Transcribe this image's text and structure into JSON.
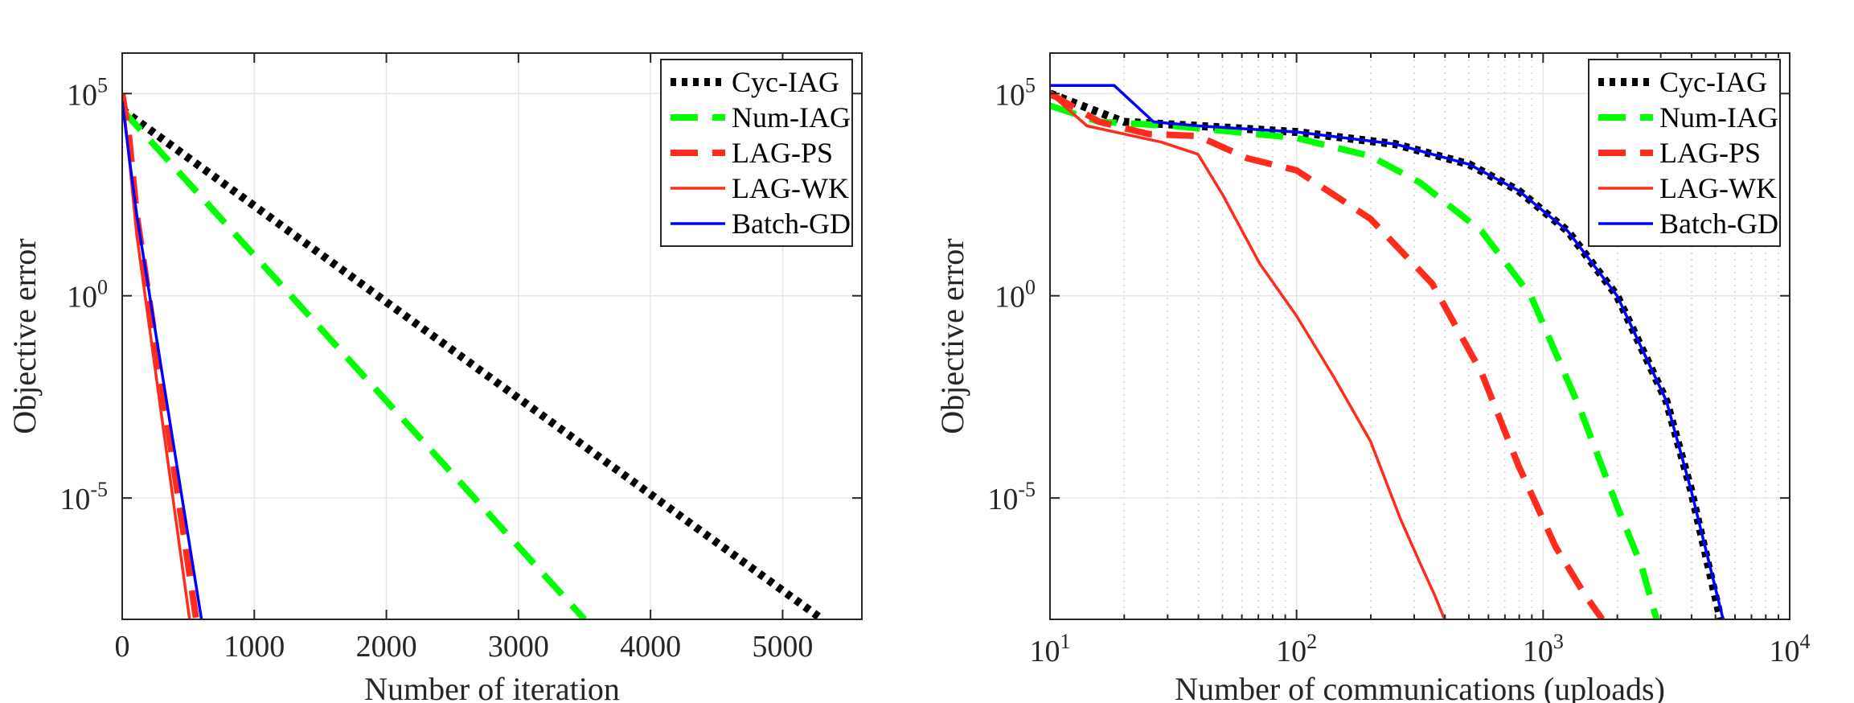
{
  "chart_data": [
    {
      "type": "line",
      "xlabel": "Number of iteration",
      "ylabel": "Objective error",
      "xscale": "linear",
      "yscale": "log",
      "xlim": [
        0,
        5600
      ],
      "ylim_log10": [
        -8,
        6
      ],
      "xticks": [
        0,
        1000,
        2000,
        3000,
        4000,
        5000
      ],
      "yticks": [
        {
          "base": "10",
          "exp": "5",
          "v": 5
        },
        {
          "base": "10",
          "exp": "0",
          "v": 0
        },
        {
          "base": "10",
          "exp": "-5",
          "v": -5
        }
      ],
      "grid": "on",
      "legend_position": "top-right",
      "series": [
        {
          "name": "Cyc-IAG",
          "color": "#000000",
          "style": "dotted",
          "x": [
            0,
            5300
          ],
          "log10y": [
            4.6,
            -8
          ]
        },
        {
          "name": "Num-IAG",
          "color": "#00ff00",
          "style": "dashed",
          "x": [
            0,
            3500
          ],
          "log10y": [
            4.6,
            -8
          ]
        },
        {
          "name": "LAG-PS",
          "color": "#ff2b1c",
          "style": "dashed",
          "x": [
            0,
            50,
            110,
            560
          ],
          "log10y": [
            5.0,
            4.0,
            2.0,
            -8
          ]
        },
        {
          "name": "LAG-WK",
          "color": "#ff2b1c",
          "style": "solid",
          "x": [
            0,
            50,
            110,
            510
          ],
          "log10y": [
            5.0,
            3.5,
            1.5,
            -8
          ]
        },
        {
          "name": "Batch-GD",
          "color": "#0000ff",
          "style": "solid",
          "x": [
            0,
            50,
            110,
            600
          ],
          "log10y": [
            4.8,
            3.5,
            2.0,
            -8
          ]
        }
      ]
    },
    {
      "type": "line",
      "xlabel": "Number of communications (uploads)",
      "ylabel": "Objective error",
      "xscale": "log",
      "yscale": "log",
      "xlim_log10": [
        1,
        4
      ],
      "ylim_log10": [
        -8,
        6
      ],
      "xticks": [
        {
          "base": "10",
          "exp": "1",
          "v": 1
        },
        {
          "base": "10",
          "exp": "2",
          "v": 2
        },
        {
          "base": "10",
          "exp": "3",
          "v": 3
        },
        {
          "base": "10",
          "exp": "4",
          "v": 4
        }
      ],
      "yticks": [
        {
          "base": "10",
          "exp": "5",
          "v": 5
        },
        {
          "base": "10",
          "exp": "0",
          "v": 0
        },
        {
          "base": "10",
          "exp": "-5",
          "v": -5
        }
      ],
      "grid": "on",
      "legend_position": "top-right",
      "series": [
        {
          "name": "Cyc-IAG",
          "color": "#000000",
          "style": "dotted",
          "lx": [
            1.0,
            1.3,
            1.6,
            2.0,
            2.4,
            2.7,
            2.9,
            3.1,
            3.3,
            3.5,
            3.6,
            3.72
          ],
          "log10y": [
            5.0,
            4.3,
            4.2,
            4.05,
            3.75,
            3.25,
            2.6,
            1.6,
            0.0,
            -2.6,
            -4.8,
            -8.0
          ]
        },
        {
          "name": "Num-IAG",
          "color": "#00ff00",
          "style": "dashed",
          "lx": [
            1.0,
            1.2,
            1.5,
            2.0,
            2.3,
            2.5,
            2.75,
            2.95,
            3.15,
            3.3,
            3.4,
            3.46
          ],
          "log10y": [
            4.7,
            4.3,
            4.2,
            3.9,
            3.45,
            2.8,
            1.6,
            0.0,
            -2.8,
            -5.2,
            -6.7,
            -8.0
          ]
        },
        {
          "name": "LAG-PS",
          "color": "#ff2b1c",
          "style": "dashed",
          "lx": [
            1.0,
            1.2,
            1.4,
            1.6,
            1.8,
            2.0,
            2.3,
            2.55,
            2.75,
            2.9,
            3.05,
            3.17,
            3.24
          ],
          "log10y": [
            5.0,
            4.3,
            4.0,
            3.95,
            3.4,
            3.1,
            1.9,
            0.3,
            -1.9,
            -4.2,
            -6.2,
            -7.4,
            -8.0
          ]
        },
        {
          "name": "LAG-WK",
          "color": "#ff2b1c",
          "style": "solid",
          "lx": [
            1.0,
            1.15,
            1.3,
            1.45,
            1.6,
            1.7,
            1.85,
            2.0,
            2.15,
            2.3,
            2.42,
            2.5,
            2.56,
            2.6
          ],
          "log10y": [
            5.0,
            4.2,
            4.0,
            3.8,
            3.5,
            2.5,
            0.8,
            -0.5,
            -2.0,
            -3.6,
            -5.5,
            -6.6,
            -7.4,
            -8.0
          ]
        },
        {
          "name": "Batch-GD",
          "color": "#0000ff",
          "style": "solid",
          "lx": [
            1.0,
            1.26,
            1.42,
            1.6,
            2.0,
            2.4,
            2.7,
            2.9,
            3.1,
            3.3,
            3.5,
            3.6,
            3.73
          ],
          "log10y": [
            5.2,
            5.2,
            4.3,
            4.2,
            4.05,
            3.75,
            3.25,
            2.6,
            1.6,
            0.0,
            -2.6,
            -4.8,
            -8.0
          ]
        }
      ]
    }
  ]
}
